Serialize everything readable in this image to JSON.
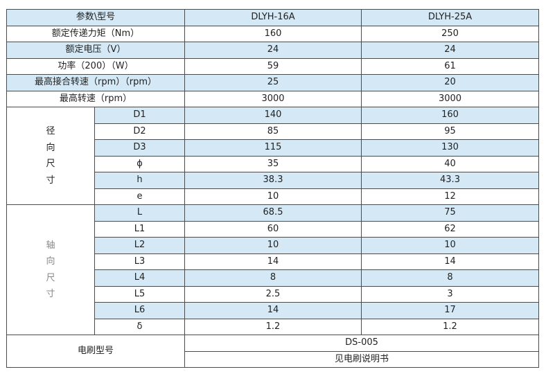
{
  "header": {
    "param": "参数\\型号",
    "models": [
      "DLYH-16A",
      "DLYH-25A"
    ]
  },
  "general_rows": [
    {
      "label": "额定传递力矩（Nm）",
      "values": [
        "160",
        "250"
      ],
      "shaded": false
    },
    {
      "label": "额定电压（V）",
      "values": [
        "24",
        "24"
      ],
      "shaded": true
    },
    {
      "label": "功率（200）（W）",
      "values": [
        "59",
        "61"
      ],
      "shaded": false
    },
    {
      "label": "最高接合转速（rpm）（rpm）",
      "values": [
        "25",
        "20"
      ],
      "shaded": true
    },
    {
      "label": "最高转速（rpm）",
      "values": [
        "3000",
        "3000"
      ],
      "shaded": false
    }
  ],
  "radial": {
    "group_label": [
      "径",
      "向",
      "尺",
      "寸"
    ],
    "rows": [
      {
        "label": "D1",
        "values": [
          "140",
          "160"
        ]
      },
      {
        "label": "D2",
        "values": [
          "85",
          "95"
        ]
      },
      {
        "label": "D3",
        "values": [
          "115",
          "130"
        ]
      },
      {
        "label": "ϕ",
        "values": [
          "35",
          "40"
        ]
      },
      {
        "label": "h",
        "values": [
          "38.3",
          "43.3"
        ]
      },
      {
        "label": "e",
        "values": [
          "10",
          "12"
        ]
      }
    ]
  },
  "axial": {
    "group_label": [
      "轴",
      "向",
      "尺",
      "寸"
    ],
    "rows": [
      {
        "label": "L",
        "values": [
          "68.5",
          "75"
        ]
      },
      {
        "label": "L1",
        "values": [
          "60",
          "62"
        ]
      },
      {
        "label": "L2",
        "values": [
          "10",
          "10"
        ]
      },
      {
        "label": "L3",
        "values": [
          "14",
          "14"
        ]
      },
      {
        "label": "L4",
        "values": [
          "8",
          "8"
        ]
      },
      {
        "label": "L5",
        "values": [
          "2.5",
          "3"
        ]
      },
      {
        "label": "L6",
        "values": [
          "14",
          "17"
        ]
      },
      {
        "label": "δ",
        "values": [
          "1.2",
          "1.2"
        ]
      }
    ]
  },
  "brush": {
    "label": "电刷型号",
    "model": "DS-005",
    "note": "见电刷说明书"
  },
  "colors": {
    "shade": "#d4e8f6",
    "border": "#4a4a4a"
  }
}
